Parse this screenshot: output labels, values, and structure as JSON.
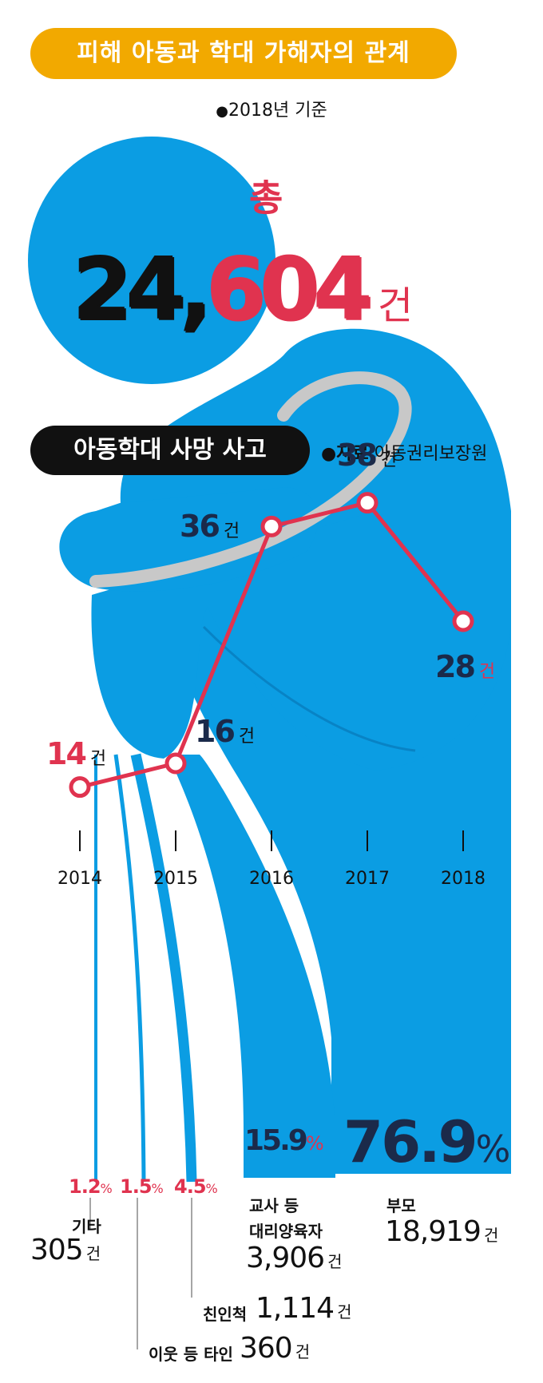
{
  "header": {
    "title": "피해 아동과 학대 가해자의 관계",
    "basis": "2018년 기준"
  },
  "total": {
    "label": "총",
    "value": "24,604",
    "unit": "건"
  },
  "deaths": {
    "title": "아동학대 사망 사고",
    "source_label": "자료",
    "source": "아동권리보장원"
  },
  "colors": {
    "figure_blue": "#0b9de3",
    "accent_red": "#e0334f",
    "dark_navy": "#1b2a4a",
    "title_orange": "#f2a900"
  },
  "chart_data": [
    {
      "type": "line",
      "title": "아동학대 사망 사고",
      "x": [
        "2014",
        "2015",
        "2016",
        "2017",
        "2018"
      ],
      "series": [
        {
          "values": [
            14,
            16,
            36,
            38,
            28
          ]
        }
      ],
      "unit": "건",
      "ylim": [
        10,
        40
      ],
      "grid": false
    },
    {
      "type": "bar",
      "title": "피해 아동과 학대 가해자의 관계",
      "categories": [
        "기타",
        "이웃 등 타인",
        "친인척",
        "교사 등 대리양육자",
        "부모"
      ],
      "values": [
        305,
        360,
        1114,
        3906,
        18919
      ],
      "percent_labels": [
        "1.2",
        "1.5",
        "4.5",
        "15.9",
        "76.9"
      ],
      "unit": "건"
    }
  ]
}
